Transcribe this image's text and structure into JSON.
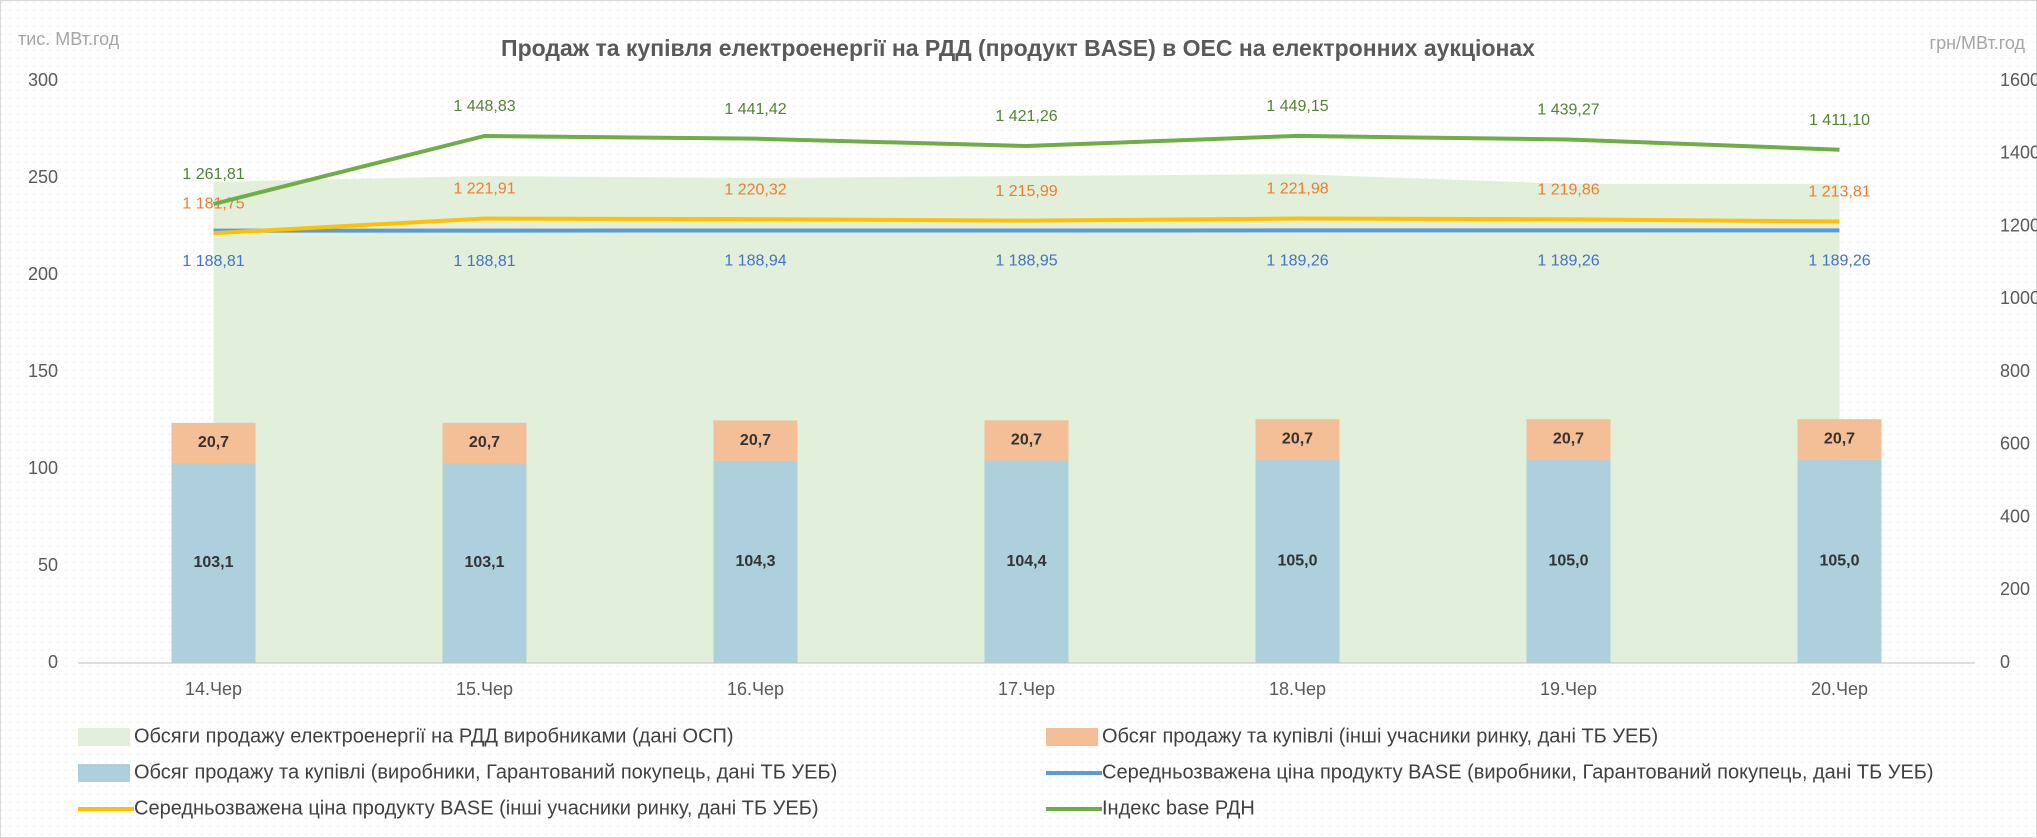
{
  "chart_data": {
    "type": "combo",
    "title": "Продаж та купівля електроенергії на РДД (продукт BASE) в ОЕС на електронних аукціонах",
    "y_label": "тис. МВт.год",
    "y2_label": "грн/МВт.год",
    "categories": [
      "14.Чер",
      "15.Чер",
      "16.Чер",
      "17.Чер",
      "18.Чер",
      "19.Чер",
      "20.Чер"
    ],
    "ylim": [
      0,
      300
    ],
    "yticks": [
      0,
      50,
      100,
      150,
      200,
      250,
      300
    ],
    "y2lim": [
      0,
      1600
    ],
    "y2ticks": [
      0,
      200,
      400,
      600,
      800,
      1000,
      1200,
      1400,
      1600
    ],
    "series": [
      {
        "name": "Обсяги продажу електроенергії на РДД виробниками (дані ОСП)",
        "type": "area",
        "axis": "y",
        "color": "#e2efda",
        "values": [
          248,
          251,
          250,
          251,
          252,
          247,
          247
        ]
      },
      {
        "name": "Обсяг продажу та купівлі (інші учасники ринку, дані ТБ УЕБ)",
        "type": "bar",
        "axis": "y",
        "stack": "s",
        "color": "#f4bf96",
        "values": [
          20.7,
          20.7,
          20.7,
          20.7,
          20.7,
          20.7,
          20.7
        ],
        "value_labels": [
          "20,7",
          "20,7",
          "20,7",
          "20,7",
          "20,7",
          "20,7",
          "20,7"
        ]
      },
      {
        "name": "Обсяг продажу та купівлі (виробники, Гарантований покупець, дані ТБ УЕБ)",
        "type": "bar",
        "axis": "y",
        "stack": "s",
        "color": "#aecfdc",
        "values": [
          103.1,
          103.1,
          104.3,
          104.4,
          105.0,
          105.0,
          105.0
        ],
        "value_labels": [
          "103,1",
          "103,1",
          "104,3",
          "104,4",
          "105,0",
          "105,0",
          "105,0"
        ]
      },
      {
        "name": "Середньозважена ціна продукту BASE (виробники, Гарантований покупець, дані ТБ УЕБ)",
        "type": "line",
        "axis": "y2",
        "color": "#5b9bd5",
        "label_color": "#4472c4",
        "label_side": "below",
        "values": [
          1188.81,
          1188.81,
          1188.94,
          1188.95,
          1189.26,
          1189.26,
          1189.26
        ],
        "value_labels": [
          "1 188,81",
          "1 188,81",
          "1 188,94",
          "1 188,95",
          "1 189,26",
          "1 189,26",
          "1 189,26"
        ]
      },
      {
        "name": "Середньозважена ціна продукту BASE (інші учасники ринку,  дані ТБ УЕБ)",
        "type": "line",
        "axis": "y2",
        "color": "#ffc000",
        "label_color": "#ed7d31",
        "label_side": "above",
        "values": [
          1181.75,
          1221.91,
          1220.32,
          1215.99,
          1221.98,
          1219.86,
          1213.81
        ],
        "value_labels": [
          "1 181,75",
          "1 221,91",
          "1 220,32",
          "1 215,99",
          "1 221,98",
          "1 219,86",
          "1 213,81"
        ]
      },
      {
        "name": "Індекс base РДН",
        "type": "line",
        "axis": "y2",
        "color": "#70ad47",
        "label_color": "#548235",
        "label_side": "above",
        "values": [
          1261.81,
          1448.83,
          1441.42,
          1421.26,
          1449.15,
          1439.27,
          1411.1
        ],
        "value_labels": [
          "1 261,81",
          "1 448,83",
          "1 441,42",
          "1 421,26",
          "1 449,15",
          "1 439,27",
          "1 411,10"
        ]
      }
    ]
  }
}
